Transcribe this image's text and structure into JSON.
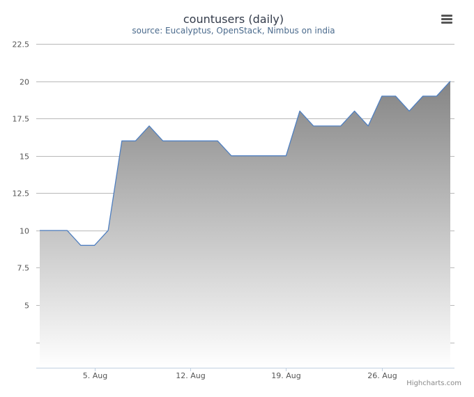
{
  "chart_data": {
    "type": "area",
    "title": "countusers (daily)",
    "subtitle": "source: Eucalyptus, OpenStack, Nimbus on india",
    "xlabel": "",
    "ylabel": "",
    "x": [
      "Aug 1",
      "Aug 2",
      "Aug 3",
      "Aug 4",
      "Aug 5",
      "Aug 6",
      "Aug 7",
      "Aug 8",
      "Aug 9",
      "Aug 10",
      "Aug 11",
      "Aug 12",
      "Aug 13",
      "Aug 14",
      "Aug 15",
      "Aug 16",
      "Aug 17",
      "Aug 18",
      "Aug 19",
      "Aug 20",
      "Aug 21",
      "Aug 22",
      "Aug 23",
      "Aug 24",
      "Aug 25",
      "Aug 26",
      "Aug 27",
      "Aug 28",
      "Aug 29",
      "Aug 30",
      "Aug 31"
    ],
    "series": [
      {
        "values": [
          10,
          10,
          10,
          9,
          9,
          10,
          16,
          16,
          17,
          16,
          16,
          16,
          16,
          16,
          15,
          15,
          15,
          15,
          15,
          18,
          17,
          17,
          17,
          18,
          17,
          19,
          19,
          18,
          19,
          19,
          20
        ]
      }
    ],
    "xticks": [
      {
        "label": "5. Aug",
        "index": 4
      },
      {
        "label": "12. Aug",
        "index": 11
      },
      {
        "label": "19. Aug",
        "index": 18
      },
      {
        "label": "26. Aug",
        "index": 25
      }
    ],
    "yticks": [
      {
        "value": 5,
        "label": "5"
      },
      {
        "value": 7.5,
        "label": "7.5"
      },
      {
        "value": 10,
        "label": "10"
      },
      {
        "value": 12.5,
        "label": "12.5"
      },
      {
        "value": 15,
        "label": "15"
      },
      {
        "value": 17.5,
        "label": "17.5"
      },
      {
        "value": 20,
        "label": "20"
      },
      {
        "value": 22.5,
        "label": "22.5"
      }
    ],
    "ygrid_extra": [
      2.5
    ],
    "ylim": [
      0.8,
      22.5
    ],
    "grid": true,
    "line_color": "#4f7fc0",
    "fill_top_color": "#858585",
    "fill_bottom_color": "#ffffff",
    "credits": "Highcharts.com",
    "menu_icon": "hamburger-menu-icon"
  }
}
